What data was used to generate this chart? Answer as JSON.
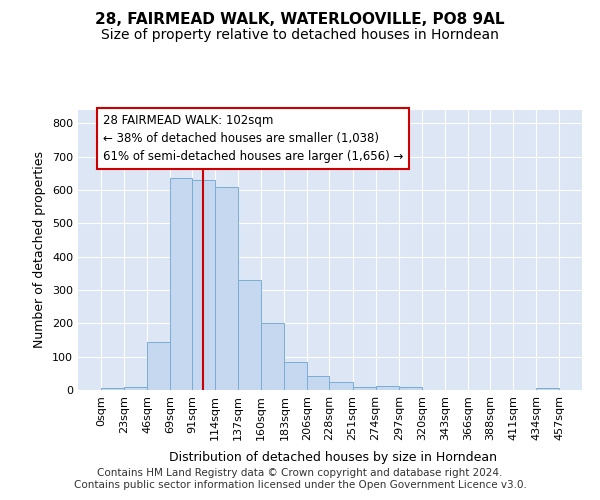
{
  "title": "28, FAIRMEAD WALK, WATERLOOVILLE, PO8 9AL",
  "subtitle": "Size of property relative to detached houses in Horndean",
  "xlabel": "Distribution of detached houses by size in Horndean",
  "ylabel": "Number of detached properties",
  "bar_color": "#c5d8ef",
  "bar_edge_color": "#7aadd4",
  "vline_x": 102,
  "vline_color": "#cc0000",
  "bin_edges": [
    0,
    23,
    46,
    69,
    91,
    114,
    137,
    160,
    183,
    206,
    228,
    251,
    274,
    297,
    320,
    343,
    366,
    388,
    411,
    434,
    457
  ],
  "bar_heights": [
    7,
    8,
    143,
    635,
    630,
    608,
    330,
    200,
    85,
    42,
    25,
    10,
    12,
    8,
    0,
    0,
    0,
    0,
    0,
    5
  ],
  "annotation_line1": "28 FAIRMEAD WALK: 102sqm",
  "annotation_line2": "← 38% of detached houses are smaller (1,038)",
  "annotation_line3": "61% of semi-detached houses are larger (1,656) →",
  "annotation_box_color": "white",
  "annotation_box_edge_color": "#cc0000",
  "footer_text": "Contains HM Land Registry data © Crown copyright and database right 2024.\nContains public sector information licensed under the Open Government Licence v3.0.",
  "ylim": [
    0,
    840
  ],
  "yticks": [
    0,
    100,
    200,
    300,
    400,
    500,
    600,
    700,
    800
  ],
  "background_color": "#ffffff",
  "plot_bg_color": "#dce6f5",
  "grid_color": "white",
  "title_fontsize": 11,
  "subtitle_fontsize": 10,
  "axis_label_fontsize": 9,
  "tick_fontsize": 8,
  "annotation_fontsize": 8.5,
  "footer_fontsize": 7.5
}
